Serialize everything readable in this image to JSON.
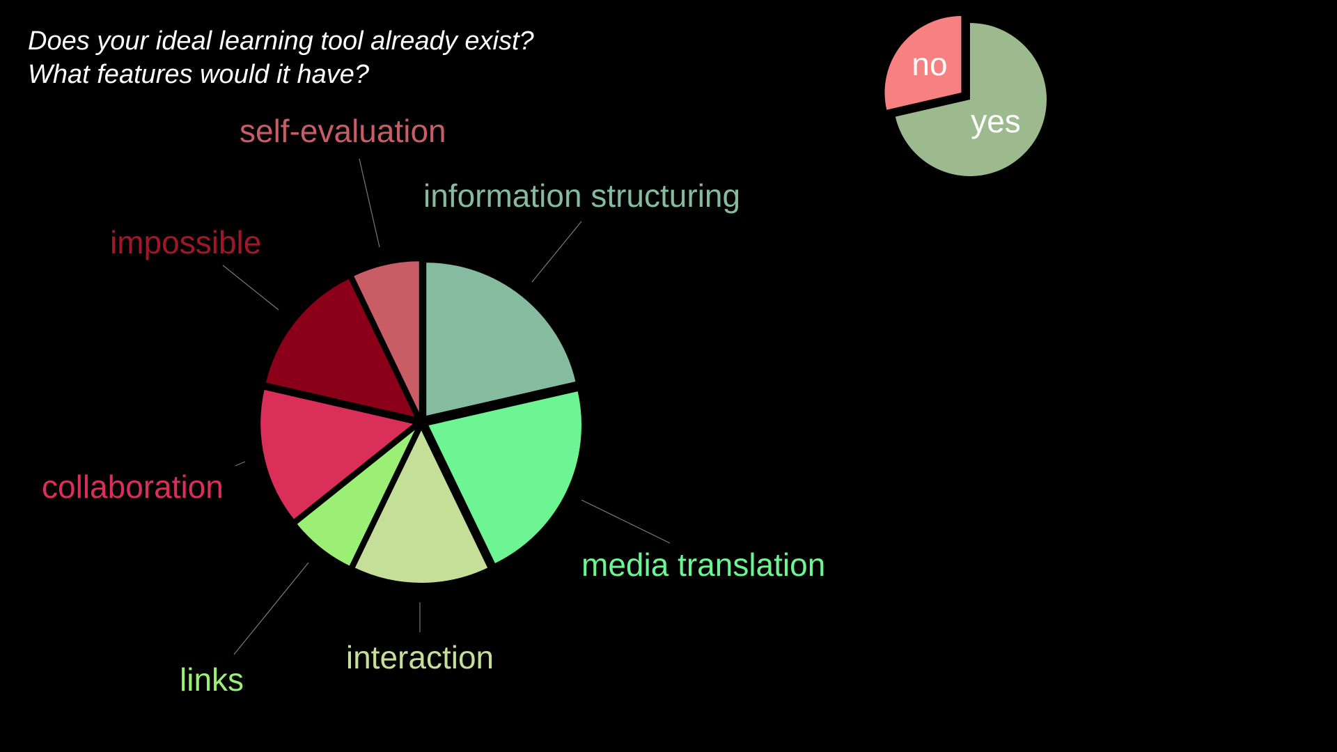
{
  "slide": {
    "question_line1": "Does your ideal learning tool already exist?",
    "question_line2": "What features would it have?"
  },
  "chart_data": [
    {
      "type": "pie",
      "categories": [
        "information structuring",
        "media translation",
        "interaction",
        "links",
        "collaboration",
        "impossible",
        "self-evaluation"
      ],
      "values": [
        21.4,
        21.4,
        14.3,
        7.1,
        14.3,
        14.3,
        7.1
      ],
      "colors": [
        "#85bc9f",
        "#6cf592",
        "#c5df99",
        "#9bef75",
        "#da2f58",
        "#8b0018",
        "#c95d66"
      ],
      "label_colors": [
        "#85bc9f",
        "#6cf592",
        "#c5df99",
        "#9bef75",
        "#da2f58",
        "#a01828",
        "#c95d66"
      ],
      "exploded": true,
      "label_style": "outside with leader lines"
    },
    {
      "type": "pie",
      "categories": [
        "yes",
        "no"
      ],
      "values": [
        71.4,
        28.6
      ],
      "colors": [
        "#9dba8e",
        "#f78080"
      ],
      "exploded_slice": "no",
      "label_style": "inside"
    }
  ]
}
